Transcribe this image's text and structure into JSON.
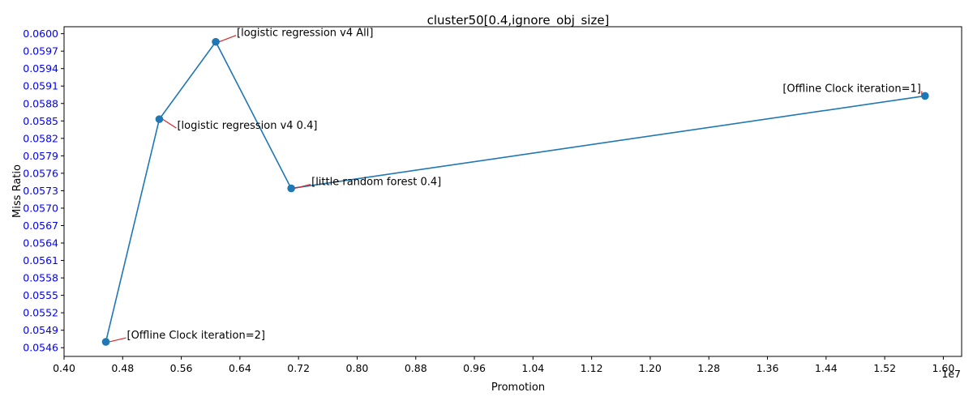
{
  "chart_data": {
    "type": "scatter",
    "title": "cluster50[0.4,ignore_obj_size]",
    "xlabel": "Promotion",
    "ylabel": "Miss Ratio",
    "x_offset_label": "1e7",
    "xlim": [
      0.4,
      1.625
    ],
    "ylim": [
      0.05445,
      0.06012
    ],
    "x_ticks": [
      "0.40",
      "0.48",
      "0.56",
      "0.64",
      "0.72",
      "0.80",
      "0.88",
      "0.96",
      "1.04",
      "1.12",
      "1.20",
      "1.28",
      "1.36",
      "1.44",
      "1.52",
      "1.60"
    ],
    "y_ticks": [
      "0.0546",
      "0.0549",
      "0.0552",
      "0.0555",
      "0.0558",
      "0.0561",
      "0.0564",
      "0.0567",
      "0.0570",
      "0.0573",
      "0.0576",
      "0.0579",
      "0.0582",
      "0.0585",
      "0.0588",
      "0.0591",
      "0.0594",
      "0.0597",
      "0.0600"
    ],
    "points": [
      {
        "x": 0.457,
        "y": 0.0547,
        "label": "[Offline Clock iteration=2]"
      },
      {
        "x": 0.53,
        "y": 0.05853,
        "label": "[logistic regression v4 0.4]"
      },
      {
        "x": 0.607,
        "y": 0.05986,
        "label": "[logistic regression v4 All]"
      },
      {
        "x": 0.71,
        "y": 0.05734,
        "label": "[little random forest 0.4]"
      },
      {
        "x": 1.575,
        "y": 0.05893,
        "label": "[Offline Clock iteration=1]"
      }
    ],
    "grid": false,
    "colors": {
      "line": "#1f77b4",
      "annotation_arrow": "#d62728",
      "y_tick_labels": "#0000ff"
    }
  }
}
